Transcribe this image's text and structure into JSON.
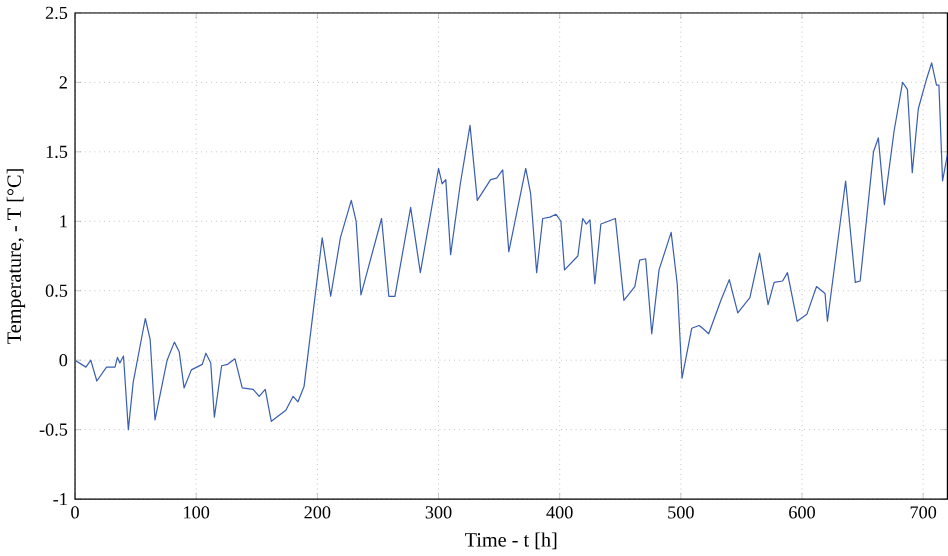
{
  "chart_data": {
    "type": "line",
    "xlabel": "Time - t [h]",
    "ylabel": "Temperature, - T [°C]",
    "xlim": [
      0,
      720
    ],
    "ylim": [
      -1,
      2.5
    ],
    "xticks": [
      0,
      100,
      200,
      300,
      400,
      500,
      600,
      700
    ],
    "yticks": [
      -1,
      -0.5,
      0,
      0.5,
      1,
      1.5,
      2,
      2.5
    ],
    "grid": true,
    "line_style": "solid",
    "marker": "none",
    "series": [
      {
        "color": "#3a5fb0",
        "x": [
          0,
          9,
          13,
          18,
          26,
          33,
          35,
          37,
          40,
          44,
          48,
          58,
          62,
          66,
          76,
          82,
          86,
          90,
          96,
          105,
          108,
          112,
          115,
          121,
          126,
          132,
          138,
          147,
          152,
          157,
          162,
          174,
          180,
          184,
          189,
          204,
          207,
          211,
          219,
          228,
          232,
          236,
          253,
          259,
          264,
          277,
          285,
          300,
          303,
          306,
          310,
          318,
          326,
          332,
          343,
          348,
          353,
          358,
          372,
          376,
          381,
          386,
          392,
          397,
          401,
          404,
          415,
          419,
          422,
          425,
          429,
          434,
          446,
          453,
          462,
          466,
          471,
          476,
          482,
          492,
          497,
          501,
          509,
          515,
          518,
          523,
          533,
          540,
          547,
          557,
          565,
          572,
          577,
          584,
          588,
          596,
          604,
          612,
          619,
          621,
          636,
          644,
          648,
          659,
          663,
          668,
          676,
          683,
          687,
          691,
          696,
          703,
          707,
          711,
          713,
          716,
          720
        ],
        "values": [
          0,
          -0.05,
          0,
          -0.15,
          -0.05,
          -0.05,
          0.02,
          -0.02,
          0.03,
          -0.5,
          -0.16,
          0.3,
          0.15,
          -0.43,
          0,
          0.13,
          0.06,
          -0.2,
          -0.07,
          -0.03,
          0.05,
          -0.02,
          -0.41,
          -0.04,
          -0.03,
          0.01,
          -0.2,
          -0.21,
          -0.26,
          -0.21,
          -0.44,
          -0.36,
          -0.26,
          -0.3,
          -0.19,
          0.88,
          0.71,
          0.46,
          0.88,
          1.15,
          1,
          0.47,
          1.02,
          0.46,
          0.46,
          1.1,
          0.63,
          1.38,
          1.27,
          1.3,
          0.76,
          1.27,
          1.69,
          1.15,
          1.3,
          1.31,
          1.37,
          0.78,
          1.38,
          1.2,
          0.63,
          1.02,
          1.03,
          1.05,
          1,
          0.65,
          0.75,
          1.02,
          0.98,
          1.01,
          0.55,
          0.98,
          1.02,
          0.43,
          0.53,
          0.72,
          0.73,
          0.19,
          0.65,
          0.92,
          0.55,
          -0.13,
          0.23,
          0.25,
          0.23,
          0.19,
          0.43,
          0.58,
          0.34,
          0.45,
          0.77,
          0.4,
          0.56,
          0.57,
          0.63,
          0.28,
          0.33,
          0.53,
          0.48,
          0.28,
          1.29,
          0.56,
          0.57,
          1.5,
          1.6,
          1.12,
          1.65,
          2,
          1.95,
          1.35,
          1.81,
          2.03,
          2.14,
          1.98,
          1.98,
          1.29,
          1.48
        ]
      }
    ]
  }
}
